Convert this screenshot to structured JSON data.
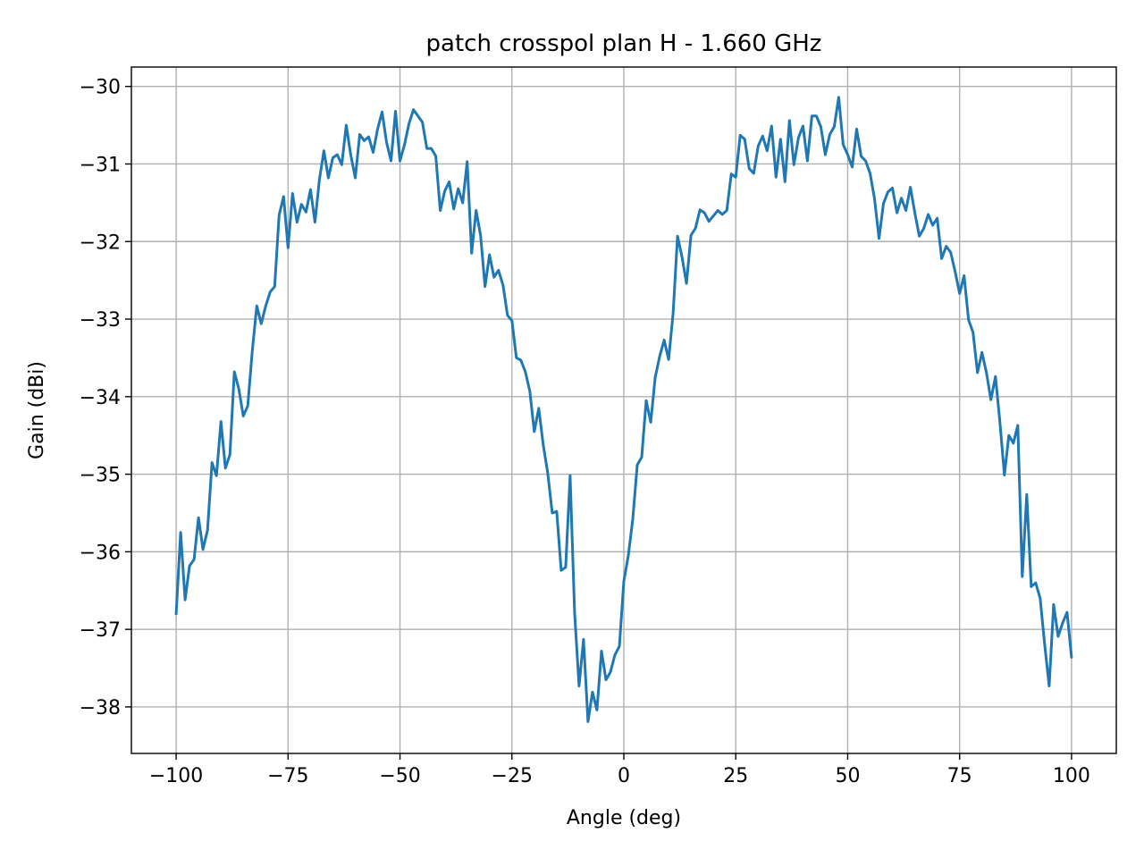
{
  "chart_data": {
    "type": "line",
    "title": "patch crosspol plan H - 1.660 GHz",
    "xlabel": "Angle (deg)",
    "ylabel": "Gain (dBi)",
    "xlim": [
      -110,
      110
    ],
    "ylim": [
      -38.6,
      -29.75
    ],
    "xticks": [
      -100,
      -75,
      -50,
      -25,
      0,
      25,
      50,
      75,
      100
    ],
    "xtick_labels": [
      "−100",
      "−75",
      "−50",
      "−25",
      "0",
      "25",
      "50",
      "75",
      "100"
    ],
    "yticks": [
      -38,
      -37,
      -36,
      -35,
      -34,
      -33,
      -32,
      -31,
      -30
    ],
    "ytick_labels": [
      "−38",
      "−37",
      "−36",
      "−35",
      "−34",
      "−33",
      "−32",
      "−31",
      "−30"
    ],
    "grid": true,
    "color": "#1f77b4",
    "series": [
      {
        "x": [
          -100,
          -99,
          -98,
          -97,
          -96,
          -95,
          -94,
          -93,
          -92,
          -91,
          -90,
          -89,
          -88,
          -87,
          -86,
          -85,
          -84,
          -83,
          -82,
          -81,
          -80,
          -79,
          -78,
          -77,
          -76,
          -75,
          -74,
          -73,
          -72,
          -71,
          -70,
          -69,
          -68,
          -67,
          -66,
          -65,
          -64,
          -63,
          -62,
          -61,
          -60,
          -59,
          -58,
          -57,
          -56,
          -55,
          -54,
          -53,
          -52,
          -51,
          -50,
          -49,
          -48,
          -47,
          -46,
          -45,
          -44,
          -43,
          -42,
          -41,
          -40,
          -39,
          -38,
          -37,
          -36,
          -35,
          -34,
          -33,
          -32,
          -31,
          -30,
          -29,
          -28,
          -27,
          -26,
          -25,
          -24,
          -23,
          -22,
          -21,
          -20,
          -19,
          -18,
          -17,
          -16,
          -15,
          -14,
          -13,
          -12,
          -11,
          -10,
          -9,
          -8,
          -7,
          -6,
          -5,
          -4,
          -3,
          -2,
          -1,
          0,
          1,
          2,
          3,
          4,
          5,
          6,
          7,
          8,
          9,
          10,
          11,
          12,
          13,
          14,
          15,
          16,
          17,
          18,
          19,
          20,
          21,
          22,
          23,
          24,
          25,
          26,
          27,
          28,
          29,
          30,
          31,
          32,
          33,
          34,
          35,
          36,
          37,
          38,
          39,
          40,
          41,
          42,
          43,
          44,
          45,
          46,
          47,
          48,
          49,
          50,
          51,
          52,
          53,
          54,
          55,
          56,
          57,
          58,
          59,
          60,
          61,
          62,
          63,
          64,
          65,
          66,
          67,
          68,
          69,
          70,
          71,
          72,
          73,
          74,
          75,
          76,
          77,
          78,
          79,
          80,
          81,
          82,
          83,
          84,
          85,
          86,
          87,
          88,
          89,
          90,
          91,
          92,
          93,
          94,
          95,
          96,
          97,
          98,
          99,
          100
        ],
        "y": [
          -36.8,
          -35.75,
          -36.62,
          -36.18,
          -36.1,
          -35.56,
          -35.97,
          -35.72,
          -34.85,
          -35.02,
          -34.32,
          -34.92,
          -34.75,
          -33.68,
          -33.9,
          -34.25,
          -34.12,
          -33.42,
          -32.83,
          -33.06,
          -32.83,
          -32.65,
          -32.58,
          -31.66,
          -31.42,
          -32.08,
          -31.38,
          -31.75,
          -31.52,
          -31.62,
          -31.33,
          -31.75,
          -31.2,
          -30.83,
          -31.18,
          -30.92,
          -30.88,
          -31.01,
          -30.5,
          -30.88,
          -31.18,
          -30.62,
          -30.7,
          -30.65,
          -30.85,
          -30.55,
          -30.33,
          -30.72,
          -30.96,
          -30.32,
          -30.96,
          -30.75,
          -30.48,
          -30.3,
          -30.38,
          -30.46,
          -30.8,
          -30.8,
          -30.9,
          -31.6,
          -31.35,
          -31.23,
          -31.58,
          -31.32,
          -31.5,
          -30.97,
          -32.15,
          -31.6,
          -31.92,
          -32.58,
          -32.17,
          -32.46,
          -32.37,
          -32.56,
          -32.95,
          -33.02,
          -33.5,
          -33.53,
          -33.68,
          -33.93,
          -34.45,
          -34.15,
          -34.62,
          -34.98,
          -35.5,
          -35.48,
          -36.24,
          -36.2,
          -35.02,
          -36.78,
          -37.73,
          -37.13,
          -38.19,
          -37.81,
          -38.04,
          -37.28,
          -37.65,
          -37.55,
          -37.33,
          -37.22,
          -36.38,
          -36.05,
          -35.58,
          -34.88,
          -34.78,
          -34.05,
          -34.33,
          -33.75,
          -33.48,
          -33.27,
          -33.52,
          -32.93,
          -31.93,
          -32.2,
          -32.54,
          -31.92,
          -31.83,
          -31.59,
          -31.63,
          -31.74,
          -31.67,
          -31.6,
          -31.65,
          -31.6,
          -31.13,
          -31.17,
          -30.63,
          -30.68,
          -31.06,
          -31.12,
          -30.77,
          -30.64,
          -30.83,
          -30.51,
          -31.17,
          -30.68,
          -31.23,
          -30.44,
          -31.01,
          -30.66,
          -30.51,
          -30.96,
          -30.38,
          -30.38,
          -30.52,
          -30.88,
          -30.62,
          -30.52,
          -30.14,
          -30.75,
          -30.88,
          -31.04,
          -30.55,
          -30.9,
          -30.96,
          -31.12,
          -31.45,
          -31.96,
          -31.51,
          -31.36,
          -31.31,
          -31.63,
          -31.44,
          -31.6,
          -31.3,
          -31.63,
          -31.93,
          -31.83,
          -31.65,
          -31.79,
          -31.7,
          -32.22,
          -32.06,
          -32.14,
          -32.39,
          -32.67,
          -32.44,
          -33.01,
          -33.17,
          -33.69,
          -33.43,
          -33.69,
          -34.04,
          -33.74,
          -34.33,
          -35.01,
          -34.5,
          -34.6,
          -34.37,
          -36.32,
          -35.26,
          -36.45,
          -36.4,
          -36.6,
          -37.2,
          -37.73,
          -36.68,
          -37.09,
          -36.92,
          -36.78,
          -37.36
        ]
      }
    ]
  }
}
